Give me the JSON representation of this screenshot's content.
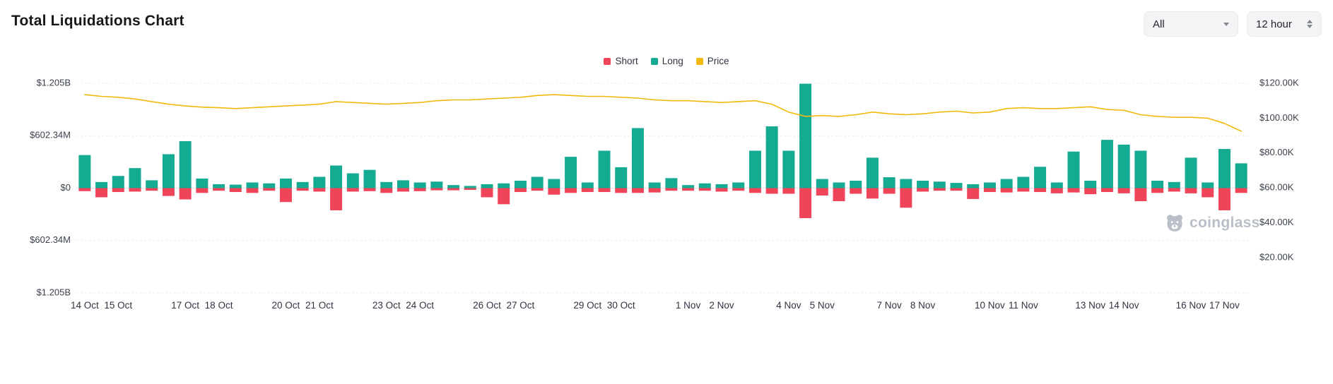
{
  "header": {
    "title": "Total Liquidations Chart",
    "range_select": {
      "value": "All"
    },
    "interval_select": {
      "value": "12 hour"
    }
  },
  "legend": [
    {
      "label": "Short",
      "color": "#f0445a"
    },
    {
      "label": "Long",
      "color": "#15ab93"
    },
    {
      "label": "Price",
      "color": "#f0b90b"
    }
  ],
  "watermark": {
    "text": "coinglass"
  },
  "chart_data": {
    "type": "bar",
    "title": "Total Liquidations Chart",
    "interval": "12 hour",
    "legend_position": "top-center",
    "grid": true,
    "left_axis": {
      "tick_labels": [
        "$1.205B",
        "$602.34M",
        "$0",
        "$602.34M",
        "$1.205B"
      ],
      "tick_values_musd": [
        1205,
        602.34,
        0,
        -602.34,
        -1205
      ]
    },
    "right_axis": {
      "tick_labels": [
        "$120.00K",
        "$100.00K",
        "$80.00K",
        "$60.00K",
        "$40.00K",
        "$20.00K"
      ],
      "tick_values_usd": [
        120000,
        100000,
        80000,
        60000,
        40000,
        20000
      ]
    },
    "x_tick_labels": [
      "14 Oct",
      "15 Oct",
      "17 Oct",
      "18 Oct",
      "20 Oct",
      "21 Oct",
      "23 Oct",
      "24 Oct",
      "26 Oct",
      "27 Oct",
      "29 Oct",
      "30 Oct",
      "1 Nov",
      "2 Nov",
      "4 Nov",
      "5 Nov",
      "7 Nov",
      "8 Nov",
      "10 Nov",
      "11 Nov",
      "13 Nov",
      "14 Nov",
      "16 Nov",
      "17 Nov"
    ],
    "bars_per_day": 2,
    "series": [
      {
        "name": "Long",
        "color": "#15ab93",
        "unit": "M USD",
        "values": [
          380,
          70,
          140,
          230,
          90,
          390,
          540,
          110,
          45,
          40,
          65,
          55,
          110,
          70,
          130,
          260,
          170,
          210,
          70,
          90,
          65,
          75,
          35,
          25,
          45,
          55,
          85,
          130,
          105,
          360,
          65,
          430,
          240,
          690,
          65,
          115,
          35,
          55,
          45,
          65,
          430,
          710,
          430,
          1200,
          105,
          65,
          85,
          350,
          125,
          105,
          85,
          75,
          60,
          45,
          65,
          105,
          130,
          245,
          65,
          420,
          85,
          555,
          500,
          430,
          85,
          70,
          350,
          65,
          450,
          285
        ]
      },
      {
        "name": "Short",
        "color": "#f0445a",
        "unit": "M USD",
        "values": [
          35,
          105,
          45,
          40,
          30,
          90,
          130,
          55,
          30,
          45,
          55,
          30,
          160,
          30,
          40,
          255,
          40,
          35,
          55,
          40,
          35,
          25,
          25,
          20,
          105,
          185,
          45,
          30,
          75,
          55,
          45,
          45,
          55,
          55,
          50,
          30,
          30,
          30,
          40,
          30,
          55,
          65,
          65,
          345,
          85,
          150,
          65,
          120,
          65,
          225,
          40,
          30,
          30,
          125,
          45,
          50,
          40,
          45,
          60,
          50,
          70,
          45,
          60,
          150,
          55,
          40,
          60,
          105,
          255,
          55
        ]
      },
      {
        "name": "Price",
        "color": "#f0b90b",
        "unit": "K USD",
        "values": [
          113.5,
          112.5,
          112,
          111,
          109.5,
          108,
          107,
          106.3,
          106,
          105.5,
          106,
          106.5,
          107,
          107.5,
          108,
          109.5,
          109,
          108.5,
          108,
          108.5,
          109,
          110,
          110.5,
          110.5,
          111,
          111.5,
          112,
          113,
          113.5,
          113,
          112.5,
          112.5,
          112,
          111.5,
          110.5,
          110,
          110,
          109.5,
          109,
          109.5,
          110,
          108,
          103.5,
          101,
          101.5,
          101,
          102,
          103.5,
          102.5,
          102,
          102.5,
          103.5,
          104,
          103,
          103.5,
          105.5,
          106,
          105.5,
          105.5,
          106,
          106.5,
          105,
          104.5,
          102,
          101,
          100.5,
          100.5,
          100,
          97,
          92.5
        ]
      }
    ]
  }
}
